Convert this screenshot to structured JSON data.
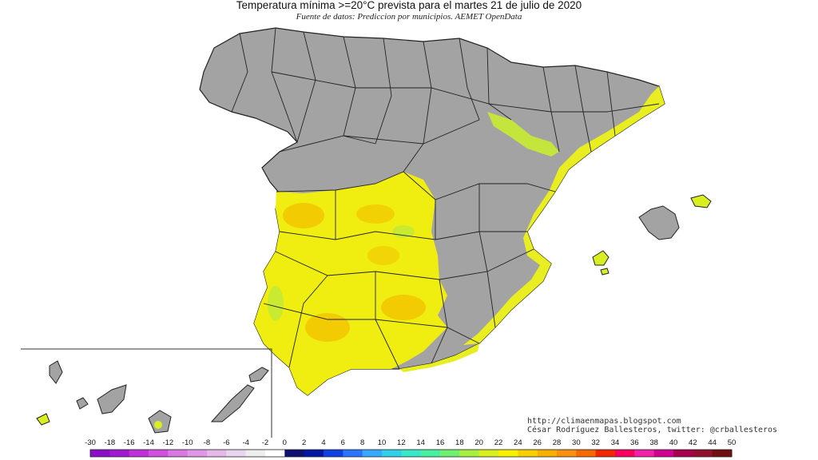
{
  "title": "Temperatura mínima >=20°C prevista para el martes 21 de julio de 2020",
  "subtitle": "Fuente de datos: Prediccion por municipios. AEMET OpenData",
  "credits": {
    "blog": "http://climaenmapas.blogspot.com",
    "author": "César Rodríguez Ballesteros, twitter: @crballesteros"
  },
  "legend": {
    "labels": [
      "-30",
      "-18",
      "-16",
      "-14",
      "-12",
      "-10",
      "-8",
      "-6",
      "-4",
      "-2",
      "0",
      "2",
      "4",
      "6",
      "8",
      "10",
      "12",
      "14",
      "16",
      "18",
      "20",
      "22",
      "24",
      "26",
      "28",
      "30",
      "32",
      "34",
      "36",
      "38",
      "40",
      "42",
      "44",
      "50"
    ],
    "colors": [
      "#8a10c8",
      "#a018d0",
      "#c030d8",
      "#d050e0",
      "#d878e0",
      "#e098e6",
      "#e6b8ea",
      "#e8d6ee",
      "#eeeeee",
      "#ffffff",
      "#101070",
      "#0018a0",
      "#1040e0",
      "#2a74ff",
      "#38a8ff",
      "#30d0e8",
      "#38e8c8",
      "#48f0a0",
      "#70f070",
      "#a8f040",
      "#d8f020",
      "#f8f000",
      "#f8d000",
      "#f8b000",
      "#f89010",
      "#f86800",
      "#f02800",
      "#f80060",
      "#f020a8",
      "#d00090",
      "#a80050",
      "#901030",
      "#701010"
    ]
  },
  "colors": {
    "land_gray": "#a0a0a0",
    "warm_yellow": "#f0f000",
    "warm_green": "#c8f030",
    "hot_orange": "#f5c800",
    "border": "#222222"
  }
}
